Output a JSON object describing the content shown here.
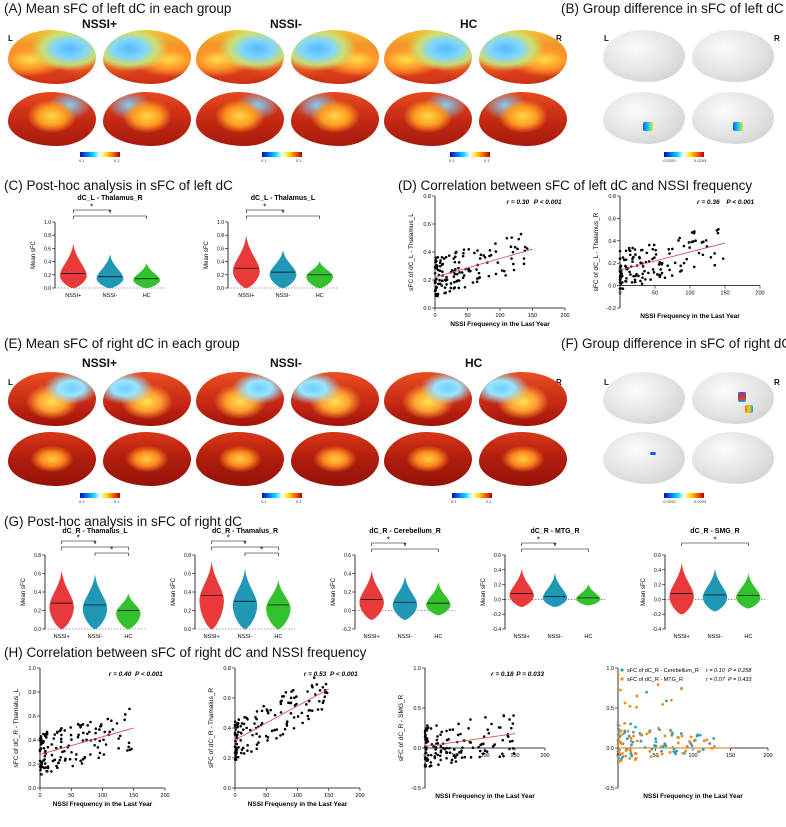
{
  "panels": {
    "A": "(A) Mean sFC of left dC in each group",
    "B": "(B) Group difference in sFC of left dC",
    "C": "(C) Post-hoc analysis in sFC of left dC",
    "D": "(D) Correlation between sFC of left dC and NSSI frequency",
    "E": "(E) Mean sFC of right dC in each group",
    "F": "(F) Group difference in sFC of right dC",
    "G": "(G) Post-hoc analysis in sFC of right dC",
    "H": "(H) Correlation between sFC of right dC and NSSI frequency"
  },
  "groups": [
    "NSSI+",
    "NSSI-",
    "HC"
  ],
  "hemi": {
    "left": "L",
    "right": "R"
  },
  "colorbar_A": {
    "min": "0.1",
    "max": "0.1"
  },
  "colorbar_B": {
    "min": "-0.0293",
    "max": "0.0293"
  },
  "colors": {
    "nssi_plus": "#e83a3a",
    "nssi_minus": "#1f97b5",
    "hc": "#34c12e",
    "fit_line": "#e05050"
  },
  "chart_data": [
    {
      "type": "violin",
      "panel": "C",
      "title": "dC_L - Thalamus_R",
      "ylabel": "Mean sFC",
      "categories": [
        "NSSI+",
        "NSSI-",
        "HC"
      ],
      "ylim": [
        0,
        1.0
      ],
      "yticks": [
        0,
        0.2,
        0.4,
        0.6,
        0.8,
        1.0
      ],
      "medians": [
        0.22,
        0.17,
        0.14
      ],
      "maxes": [
        0.66,
        0.5,
        0.37
      ],
      "sig": [
        {
          "from": 0,
          "to": 1,
          "label": "*"
        },
        {
          "from": 0,
          "to": 2,
          "label": "*"
        }
      ]
    },
    {
      "type": "violin",
      "panel": "C",
      "title": "dC_L - Thalamus_L",
      "ylabel": "Mean sFC",
      "categories": [
        "NSSI+",
        "NSSI-",
        "HC"
      ],
      "ylim": [
        0,
        1.0
      ],
      "yticks": [
        0,
        0.2,
        0.4,
        0.6,
        0.8,
        1.0
      ],
      "medians": [
        0.3,
        0.24,
        0.2
      ],
      "maxes": [
        0.78,
        0.56,
        0.4
      ],
      "sig": [
        {
          "from": 0,
          "to": 1,
          "label": "*"
        },
        {
          "from": 0,
          "to": 2,
          "label": "*"
        }
      ]
    },
    {
      "type": "scatter",
      "panel": "D",
      "xlabel": "NSSI Frequency in the Last Year",
      "ylabel": "sFC of dC_L - Thalamus_L",
      "xlim": [
        0,
        200
      ],
      "xticks": [
        0,
        50,
        100,
        150,
        200
      ],
      "ylim": [
        0,
        0.8
      ],
      "yticks": [
        0,
        0.2,
        0.4,
        0.6,
        0.8
      ],
      "r": "r = 0.30",
      "p": "P < 0.001",
      "fit": [
        [
          0,
          0.22
        ],
        [
          150,
          0.42
        ]
      ]
    },
    {
      "type": "scatter",
      "panel": "D",
      "xlabel": "NSSI Frequency in the Last Year",
      "ylabel": "sFC of dC_L - Thalamus_R",
      "xlim": [
        0,
        200
      ],
      "xticks": [
        0,
        50,
        100,
        150,
        200
      ],
      "ylim": [
        -0.2,
        0.8
      ],
      "yticks": [
        -0.2,
        0,
        0.2,
        0.4,
        0.6,
        0.8
      ],
      "r": "r = 0.36",
      "p": "P < 0.001",
      "fit": [
        [
          0,
          0.14
        ],
        [
          150,
          0.38
        ]
      ]
    },
    {
      "type": "violin",
      "panel": "G",
      "title": "dC_R - Thamalus_L",
      "ylabel": "Mean sFC",
      "categories": [
        "NSSI+",
        "NSSI-",
        "HC"
      ],
      "ylim": [
        0,
        0.8
      ],
      "yticks": [
        0.0,
        0.2,
        0.4,
        0.6,
        0.8
      ],
      "medians": [
        0.28,
        0.26,
        0.2
      ],
      "maxes": [
        0.62,
        0.58,
        0.38
      ],
      "sig": [
        {
          "from": 0,
          "to": 1,
          "label": "*"
        },
        {
          "from": 0,
          "to": 2,
          "label": "*"
        },
        {
          "from": 1,
          "to": 2,
          "label": "*"
        }
      ]
    },
    {
      "type": "violin",
      "panel": "G",
      "title": "dC_R - Thamalus_R",
      "ylabel": "Mean sFC",
      "categories": [
        "NSSI+",
        "NSSI-",
        "HC"
      ],
      "ylim": [
        0,
        0.8
      ],
      "yticks": [
        0.0,
        0.2,
        0.4,
        0.6,
        0.8
      ],
      "medians": [
        0.36,
        0.3,
        0.26
      ],
      "maxes": [
        0.72,
        0.64,
        0.52
      ],
      "sig": [
        {
          "from": 0,
          "to": 1,
          "label": "*"
        },
        {
          "from": 0,
          "to": 2,
          "label": "*"
        },
        {
          "from": 1,
          "to": 2,
          "label": "*"
        }
      ]
    },
    {
      "type": "violin",
      "panel": "G",
      "title": "dC_R - Cerebellum_R",
      "ylabel": "Mean sFC",
      "categories": [
        "NSSI+",
        "NSSI-",
        "HC"
      ],
      "ylim": [
        -0.2,
        0.6
      ],
      "yticks": [
        -0.2,
        0.0,
        0.2,
        0.4,
        0.6
      ],
      "medians": [
        0.12,
        0.09,
        0.08
      ],
      "maxes": [
        0.42,
        0.36,
        0.3
      ],
      "mins": [
        -0.1,
        -0.1,
        -0.05
      ],
      "sig": [
        {
          "from": 0,
          "to": 1,
          "label": "*"
        },
        {
          "from": 0,
          "to": 2,
          "label": "*"
        }
      ]
    },
    {
      "type": "violin",
      "panel": "G",
      "title": "dC_R - MTG_R",
      "ylabel": "Mean sFC",
      "categories": [
        "NSSI+",
        "NSSI-",
        "HC"
      ],
      "ylim": [
        -0.4,
        0.6
      ],
      "yticks": [
        -0.4,
        -0.2,
        0.0,
        0.2,
        0.4,
        0.6
      ],
      "medians": [
        0.08,
        0.04,
        0.02
      ],
      "maxes": [
        0.4,
        0.34,
        0.2
      ],
      "mins": [
        -0.1,
        -0.1,
        -0.08
      ],
      "sig": [
        {
          "from": 0,
          "to": 1,
          "label": "*"
        },
        {
          "from": 0,
          "to": 2,
          "label": "*"
        }
      ]
    },
    {
      "type": "violin",
      "panel": "G",
      "title": "dC_R - SMG_R",
      "ylabel": "Mean sFC",
      "categories": [
        "NSSI+",
        "NSSI-",
        "HC"
      ],
      "ylim": [
        -0.4,
        0.6
      ],
      "yticks": [
        -0.4,
        -0.2,
        0.0,
        0.2,
        0.4,
        0.6
      ],
      "medians": [
        0.08,
        0.06,
        0.05
      ],
      "maxes": [
        0.48,
        0.4,
        0.34
      ],
      "mins": [
        -0.2,
        -0.16,
        -0.12
      ],
      "sig": [
        {
          "from": 0,
          "to": 2,
          "label": "*"
        }
      ]
    },
    {
      "type": "scatter",
      "panel": "H",
      "xlabel": "NSSI Frequency in the Last Year",
      "ylabel": "sFC of dC_R - Thamalus_L",
      "xlim": [
        0,
        200
      ],
      "xticks": [
        0,
        50,
        100,
        150,
        200
      ],
      "ylim": [
        0,
        1.0
      ],
      "yticks": [
        0.0,
        0.2,
        0.4,
        0.6,
        0.8,
        1.0
      ],
      "r": "r = 0.40",
      "p": "P < 0.001",
      "fit": [
        [
          0,
          0.28
        ],
        [
          150,
          0.5
        ]
      ]
    },
    {
      "type": "scatter",
      "panel": "H",
      "xlabel": "NSSI Frequency in the Last Year",
      "ylabel": "sFC of dC_R - Thamalus_R",
      "xlim": [
        0,
        200
      ],
      "xticks": [
        0,
        50,
        100,
        150,
        200
      ],
      "ylim": [
        0,
        0.8
      ],
      "yticks": [
        0,
        0.2,
        0.4,
        0.6,
        0.8
      ],
      "r": "r = 0.53",
      "p": "P < 0.001",
      "fit": [
        [
          0,
          0.32
        ],
        [
          150,
          0.66
        ]
      ]
    },
    {
      "type": "scatter",
      "panel": "H",
      "xlabel": "NSSI Frequency in the Last Year",
      "ylabel": "sFC of dC_R - SMG_R",
      "xlim": [
        0,
        200
      ],
      "xticks": [
        0,
        50,
        100,
        150,
        200
      ],
      "ylim": [
        -0.5,
        1.0
      ],
      "yticks": [
        -0.5,
        0.0,
        0.5,
        1.0
      ],
      "r": "r = 0.18",
      "p": "P = 0.033",
      "fit": [
        [
          0,
          0.02
        ],
        [
          150,
          0.18
        ]
      ]
    },
    {
      "type": "scatter",
      "panel": "H",
      "xlabel": "NSSI Frequency in the Last Year",
      "ylabel": "",
      "xlim": [
        0,
        200
      ],
      "xticks": [
        0,
        50,
        100,
        150,
        200
      ],
      "ylim": [
        -0.5,
        1.0
      ],
      "yticks": [
        -0.5,
        0.0,
        0.5,
        1.0
      ],
      "series": [
        {
          "name": "sFC of dC_R - Cerebellum_R",
          "r": "r = 0.10",
          "p": "P = 0.258",
          "color": "#2a9fc0"
        },
        {
          "name": "sFC of dC_R - MTG_R",
          "r": "r = 0.07",
          "p": "P = 0.433",
          "color": "#f08a1a"
        }
      ]
    }
  ]
}
